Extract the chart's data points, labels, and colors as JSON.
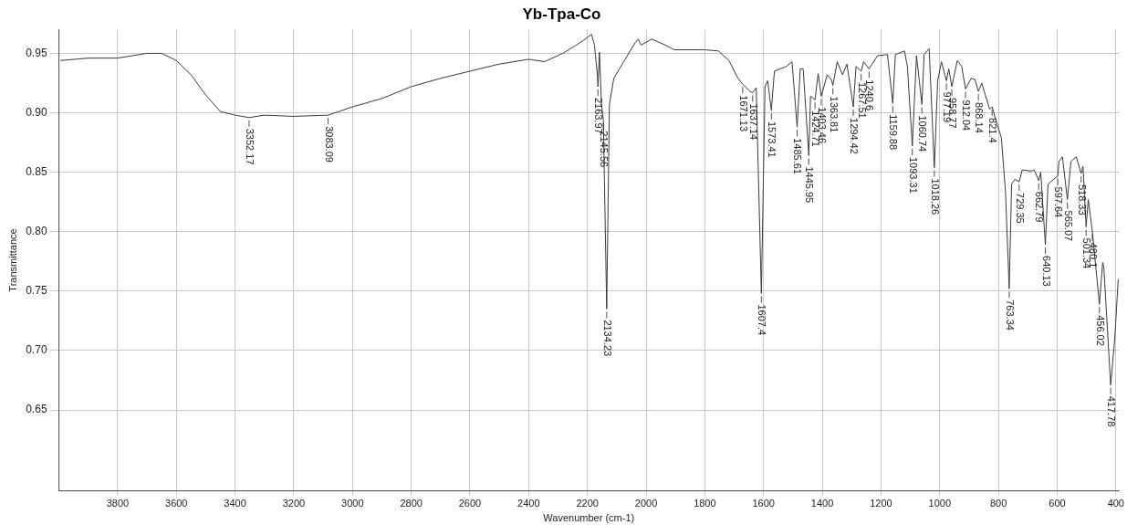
{
  "chart_data": {
    "type": "line",
    "title": "Yb-Tpa-Co",
    "xlabel": "Wavenumber (cm-1)",
    "ylabel": "Transmittance",
    "xlim": [
      4000,
      390
    ],
    "xticks": [
      3800,
      3600,
      3400,
      3200,
      3000,
      2800,
      2600,
      2400,
      2200,
      2000,
      1800,
      1600,
      1400,
      1200,
      1000,
      800,
      600,
      400
    ],
    "ylim": [
      0.582,
      0.97
    ],
    "yticks": [
      0.65,
      {
        "value": 0.7,
        "label": "0.70"
      },
      0.75,
      {
        "value": 0.8,
        "label": "0.80"
      },
      0.85,
      {
        "value": 0.9,
        "label": "0.90"
      },
      0.95
    ],
    "grid": true,
    "legend": false,
    "marker": "none",
    "line_style": "solid",
    "series": [
      {
        "color": "#3a3a3a",
        "x": [
          3995,
          3900,
          3800,
          3700,
          3650,
          3600,
          3550,
          3500,
          3450,
          3400,
          3352.17,
          3300,
          3200,
          3083.09,
          3000,
          2900,
          2800,
          2700,
          2600,
          2500,
          2400,
          2346,
          2284,
          2244,
          2213,
          2186,
          2176,
          2166,
          2163.97,
          2159,
          2152,
          2145.56,
          2134.23,
          2125,
          2110,
          2074,
          2037,
          2027,
          2017,
          1981,
          1935,
          1904,
          1800,
          1754,
          1718,
          1687,
          1671.13,
          1646,
          1637.14,
          1625,
          1607.4,
          1595,
          1586,
          1573.41,
          1563,
          1522,
          1503,
          1485.61,
          1475,
          1465,
          1445.95,
          1440,
          1424.71,
          1414,
          1403.46,
          1383,
          1369,
          1363.81,
          1349,
          1331,
          1316,
          1294.42,
          1285,
          1267.51,
          1259,
          1240.6,
          1212,
          1178,
          1159.88,
          1151,
          1120,
          1110,
          1093.31,
          1079,
          1060.74,
          1053,
          1036,
          1018.26,
          1007,
          994,
          977.19,
          969,
          958.77,
          940,
          925,
          912.04,
          893,
          880,
          868.14,
          857,
          830,
          821.4,
          810,
          790,
          776,
          763.34,
          755,
          744,
          729.35,
          719,
          688,
          678,
          662.79,
          656,
          640.13,
          631,
          597.64,
          594,
          582,
          565.07,
          553,
          535,
          518.33,
          512,
          501.34,
          494,
          480.1,
          456.02,
          445,
          441,
          417.78,
          404,
          392
        ],
        "values": [
          0.944,
          0.946,
          0.946,
          0.95,
          0.95,
          0.944,
          0.932,
          0.915,
          0.901,
          0.898,
          0.896,
          0.898,
          0.897,
          0.898,
          0.905,
          0.912,
          0.922,
          0.929,
          0.935,
          0.941,
          0.945,
          0.943,
          0.95,
          0.956,
          0.961,
          0.966,
          0.957,
          0.932,
          0.922,
          0.951,
          0.907,
          0.894,
          0.735,
          0.907,
          0.929,
          0.944,
          0.959,
          0.962,
          0.957,
          0.962,
          0.957,
          0.953,
          0.953,
          0.952,
          0.944,
          0.929,
          0.924,
          0.918,
          0.917,
          0.921,
          0.748,
          0.922,
          0.927,
          0.902,
          0.935,
          0.939,
          0.943,
          0.888,
          0.937,
          0.937,
          0.864,
          0.914,
          0.911,
          0.933,
          0.914,
          0.932,
          0.928,
          0.923,
          0.943,
          0.932,
          0.941,
          0.905,
          0.939,
          0.935,
          0.943,
          0.937,
          0.948,
          0.949,
          0.908,
          0.949,
          0.952,
          0.939,
          0.872,
          0.948,
          0.907,
          0.949,
          0.954,
          0.854,
          0.927,
          0.943,
          0.927,
          0.937,
          0.922,
          0.944,
          0.939,
          0.92,
          0.929,
          0.928,
          0.918,
          0.925,
          0.903,
          0.905,
          0.895,
          0.879,
          0.834,
          0.752,
          0.84,
          0.844,
          0.842,
          0.852,
          0.851,
          0.852,
          0.843,
          0.85,
          0.789,
          0.84,
          0.847,
          0.859,
          0.863,
          0.827,
          0.859,
          0.863,
          0.849,
          0.855,
          0.804,
          0.827,
          0.8,
          0.739,
          0.774,
          0.77,
          0.671,
          0.709,
          0.76
        ]
      }
    ],
    "annotations": [
      {
        "text": "3352.17",
        "x": 3352.17,
        "y": 0.896
      },
      {
        "text": "3083.09",
        "x": 3083.09,
        "y": 0.898
      },
      {
        "text": "2163.97",
        "x": 2163.97,
        "y": 0.922
      },
      {
        "text": "2145.56",
        "x": 2145.56,
        "y": 0.894
      },
      {
        "text": "2134.23",
        "x": 2134.23,
        "y": 0.735
      },
      {
        "text": "1671.13",
        "x": 1671.13,
        "y": 0.924
      },
      {
        "text": "1637.14",
        "x": 1637.14,
        "y": 0.917
      },
      {
        "text": "1607.4",
        "x": 1607.4,
        "y": 0.748
      },
      {
        "text": "1573.41",
        "x": 1573.41,
        "y": 0.902
      },
      {
        "text": "1485.61",
        "x": 1485.61,
        "y": 0.888
      },
      {
        "text": "1445.95",
        "x": 1445.95,
        "y": 0.864
      },
      {
        "text": "1424.71",
        "x": 1424.71,
        "y": 0.911
      },
      {
        "text": "1403.46",
        "x": 1403.46,
        "y": 0.914
      },
      {
        "text": "1363.81",
        "x": 1363.81,
        "y": 0.923
      },
      {
        "text": "1294.42",
        "x": 1294.42,
        "y": 0.905
      },
      {
        "text": "1267.51",
        "x": 1267.51,
        "y": 0.935
      },
      {
        "text": "1240.6",
        "x": 1240.6,
        "y": 0.937
      },
      {
        "text": "1159.88",
        "x": 1159.88,
        "y": 0.908
      },
      {
        "text": "1093.31",
        "x": 1093.31,
        "y": 0.872
      },
      {
        "text": "1060.74",
        "x": 1060.74,
        "y": 0.907
      },
      {
        "text": "1018.26",
        "x": 1018.26,
        "y": 0.854
      },
      {
        "text": "977.19",
        "x": 977.19,
        "y": 0.927
      },
      {
        "text": "958.77",
        "x": 958.77,
        "y": 0.922
      },
      {
        "text": "912.04",
        "x": 912.04,
        "y": 0.92
      },
      {
        "text": "868.14",
        "x": 868.14,
        "y": 0.918
      },
      {
        "text": "821.4",
        "x": 821.4,
        "y": 0.905
      },
      {
        "text": "763.34",
        "x": 763.34,
        "y": 0.752
      },
      {
        "text": "729.35",
        "x": 729.35,
        "y": 0.842
      },
      {
        "text": "662.79",
        "x": 662.79,
        "y": 0.843
      },
      {
        "text": "640.13",
        "x": 640.13,
        "y": 0.789
      },
      {
        "text": "597.64",
        "x": 597.64,
        "y": 0.847
      },
      {
        "text": "565.07",
        "x": 565.07,
        "y": 0.827
      },
      {
        "text": "518.33",
        "x": 518.33,
        "y": 0.849
      },
      {
        "text": "501.34",
        "x": 501.34,
        "y": 0.804
      },
      {
        "text": "480.1",
        "x": 480.1,
        "y": 0.8
      },
      {
        "text": "456.02",
        "x": 456.02,
        "y": 0.739
      },
      {
        "text": "417.78",
        "x": 417.78,
        "y": 0.671
      }
    ]
  }
}
